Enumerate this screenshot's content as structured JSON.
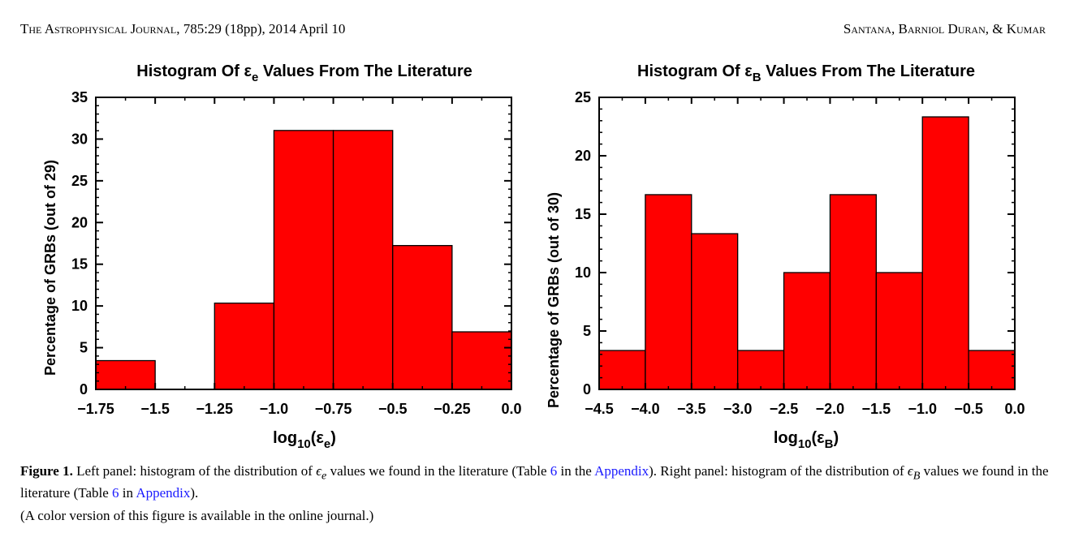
{
  "header": {
    "journal_name": "The Astrophysical Journal",
    "citation": ", 785:29 (18pp), 2014 April 10",
    "authors": "Santana, Barniol Duran, & Kumar"
  },
  "colors": {
    "bar_fill": "#ff0000",
    "bar_stroke": "#000000"
  },
  "chart_data": [
    {
      "type": "bar",
      "title_prefix": "Histogram Of ε",
      "title_sub": "e",
      "title_suffix": " Values From The Literature",
      "xlabel_prefix": "log",
      "xlabel_sub": "10",
      "xlabel_mid": "(ε",
      "xlabel_sub2": "e",
      "xlabel_suffix": ")",
      "ylabel": "Percentage of GRBs (out of 29)",
      "bin_edges": [
        -1.75,
        -1.5,
        -1.25,
        -1.0,
        -0.75,
        -0.5,
        -0.25,
        0.0
      ],
      "values": [
        3.45,
        0.0,
        10.34,
        31.03,
        31.03,
        17.24,
        6.9
      ],
      "xlim": [
        -1.75,
        0.0
      ],
      "ylim": [
        0,
        35
      ],
      "xticks": [
        -1.75,
        -1.5,
        -1.25,
        -1.0,
        -0.75,
        -0.5,
        -0.25,
        0.0
      ],
      "xtick_labels": [
        "−1.75",
        "−1.5",
        "−1.25",
        "−1.0",
        "−0.75",
        "−0.5",
        "−0.25",
        "0.0"
      ],
      "yticks": [
        0,
        5,
        10,
        15,
        20,
        25,
        30,
        35
      ],
      "ytick_labels": [
        "0",
        "5",
        "10",
        "15",
        "20",
        "25",
        "30",
        "35"
      ],
      "x_minor_step": 0.25,
      "y_minor_step": 1
    },
    {
      "type": "bar",
      "title_prefix": "Histogram Of ε",
      "title_sub": "B",
      "title_suffix": " Values From The Literature",
      "xlabel_prefix": "log",
      "xlabel_sub": "10",
      "xlabel_mid": "(ε",
      "xlabel_sub2": "B",
      "xlabel_suffix": ")",
      "ylabel": "Percentage of GRBs (out of 30)",
      "bin_edges": [
        -4.5,
        -4.0,
        -3.5,
        -3.0,
        -2.5,
        -2.0,
        -1.5,
        -1.0,
        -0.5,
        0.0
      ],
      "values": [
        3.33,
        16.67,
        13.33,
        3.33,
        10.0,
        16.67,
        10.0,
        23.33,
        3.33
      ],
      "xlim": [
        -4.5,
        0.0
      ],
      "ylim": [
        0,
        25
      ],
      "xticks": [
        -4.5,
        -4.0,
        -3.5,
        -3.0,
        -2.5,
        -2.0,
        -1.5,
        -1.0,
        -0.5,
        0.0
      ],
      "xtick_labels": [
        "−4.5",
        "−4.0",
        "−3.5",
        "−3.0",
        "−2.5",
        "−2.0",
        "−1.5",
        "−1.0",
        "−0.5",
        "0.0"
      ],
      "yticks": [
        0,
        5,
        10,
        15,
        20,
        25
      ],
      "ytick_labels": [
        "0",
        "5",
        "10",
        "15",
        "20",
        "25"
      ],
      "x_minor_step": 0.5,
      "y_minor_step": 1
    }
  ],
  "caption": {
    "figure_label": "Figure 1.",
    "text_1": " Left panel: histogram of the distribution of ",
    "eps_symbol": "ϵ",
    "eps_sub_1": "e",
    "text_2": " values we found in the literature (Table ",
    "table_ref_1": "6",
    "text_3": " in the ",
    "appendix_link_1": "Appendix",
    "text_4": "). Right panel: histogram of the distribution of ",
    "eps_sub_2": "B",
    "text_5": " values we found in the literature (Table ",
    "table_ref_2": "6",
    "text_6": " in ",
    "appendix_link_2": "Appendix",
    "text_7": ").",
    "note": "(A color version of this figure is available in the online journal.)"
  }
}
